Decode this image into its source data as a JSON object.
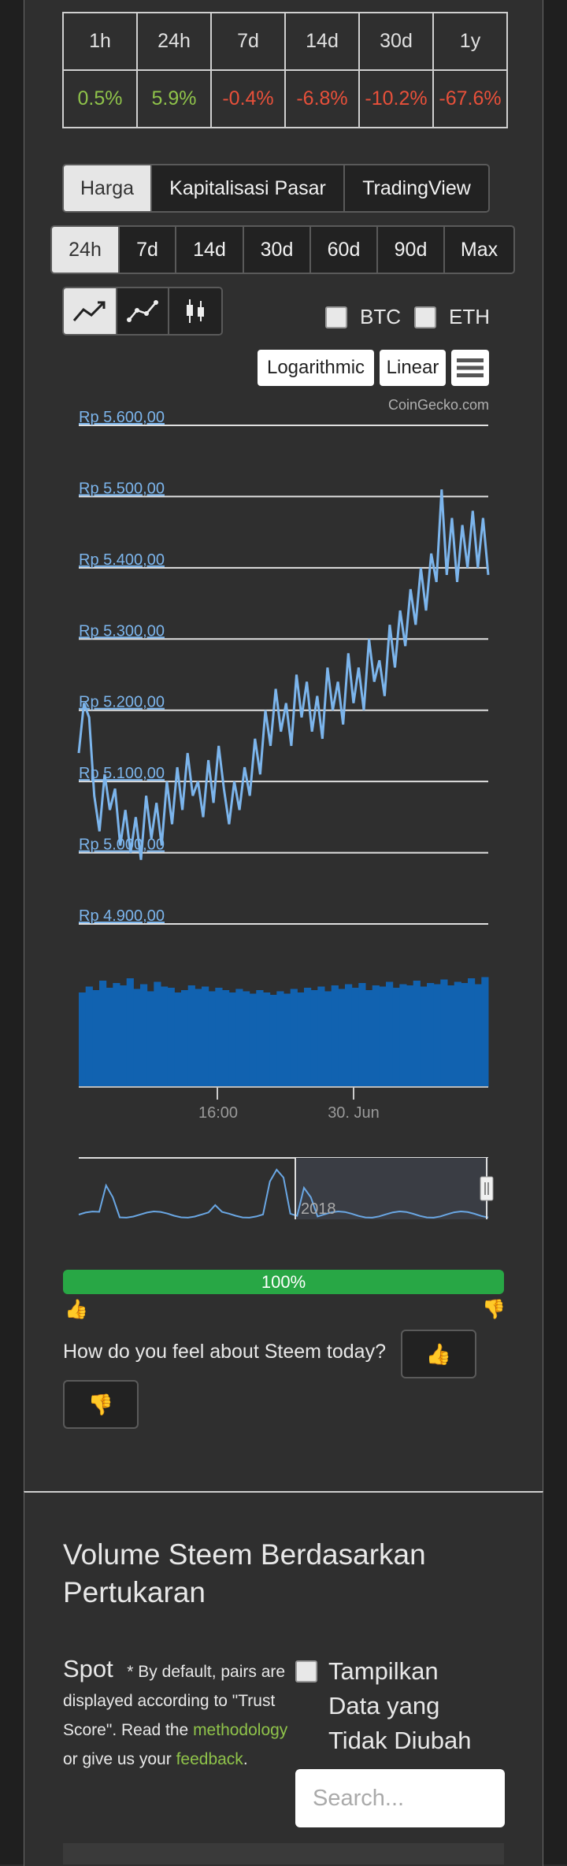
{
  "changes": {
    "headers": [
      "1h",
      "24h",
      "7d",
      "14d",
      "30d",
      "1y"
    ],
    "values": [
      "0.5%",
      "5.9%",
      "-0.4%",
      "-6.8%",
      "-10.2%",
      "-67.6%"
    ],
    "signs": [
      "pos",
      "pos",
      "neg",
      "neg",
      "neg",
      "neg"
    ]
  },
  "chart_type_tabs": [
    "Harga",
    "Kapitalisasi Pasar",
    "TradingView"
  ],
  "range_tabs": [
    "24h",
    "7d",
    "14d",
    "30d",
    "60d",
    "90d",
    "Max"
  ],
  "compare": {
    "btc": "BTC",
    "eth": "ETH"
  },
  "scale_buttons": {
    "log": "Logarithmic",
    "linear": "Linear"
  },
  "menu_icon": "hamburger-icon",
  "credit": "CoinGecko.com",
  "chart_data": {
    "type": "line",
    "y_ticks": [
      "Rp 5.600,00",
      "Rp 5.500,00",
      "Rp 5.400,00",
      "Rp 5.300,00",
      "Rp 5.200,00",
      "Rp 5.100,00",
      "Rp 5.000,00",
      "Rp 4.900,00"
    ],
    "ylim": [
      4900,
      5600
    ],
    "x_ticks": [
      "16:00",
      "30. Jun"
    ],
    "navigator_label": "2018",
    "series": [
      {
        "values": [
          5140,
          5210,
          5190,
          5080,
          5030,
          5110,
          5060,
          5090,
          5010,
          5060,
          5000,
          5050,
          4990,
          5080,
          5020,
          5070,
          5010,
          5100,
          5040,
          5120,
          5060,
          5140,
          5080,
          5100,
          5050,
          5130,
          5070,
          5150,
          5090,
          5040,
          5100,
          5060,
          5120,
          5080,
          5160,
          5110,
          5200,
          5150,
          5230,
          5170,
          5210,
          5150,
          5250,
          5190,
          5240,
          5170,
          5220,
          5160,
          5260,
          5200,
          5240,
          5180,
          5280,
          5210,
          5260,
          5200,
          5300,
          5240,
          5270,
          5220,
          5320,
          5260,
          5340,
          5290,
          5370,
          5320,
          5400,
          5340,
          5420,
          5380,
          5510,
          5390,
          5470,
          5380,
          5460,
          5400,
          5480,
          5400,
          5470,
          5390
        ]
      }
    ],
    "volume": [
      80,
      85,
      82,
      90,
      84,
      88,
      86,
      92,
      83,
      87,
      81,
      89,
      85,
      84,
      80,
      82,
      86,
      83,
      85,
      81,
      84,
      82,
      80,
      83,
      81,
      79,
      82,
      80,
      78,
      81,
      79,
      83,
      80,
      84,
      82,
      85,
      81,
      86,
      83,
      87,
      84,
      88,
      82,
      86,
      85,
      89,
      84,
      87,
      86,
      90,
      85,
      88,
      87,
      91,
      86,
      89,
      88,
      92,
      87,
      93
    ]
  },
  "sentiment": {
    "percent_label": "100%",
    "percent": 100,
    "question": "How do you feel about Steem today?",
    "up_icon": "thumbs-up-icon",
    "down_icon": "thumbs-down-icon"
  },
  "volume_section": {
    "title": "Volume Steem Berdasarkan Pertukaran",
    "spot": "Spot",
    "note": "* By default, pairs are displayed according to \"Trust Score\". Read the",
    "link1": "methodology",
    "mid": " or give us your",
    "link2": "feedback",
    "end": ".",
    "checkbox": "Tampilkan Data yang Tidak Diubah",
    "search_placeholder": "Search..."
  }
}
